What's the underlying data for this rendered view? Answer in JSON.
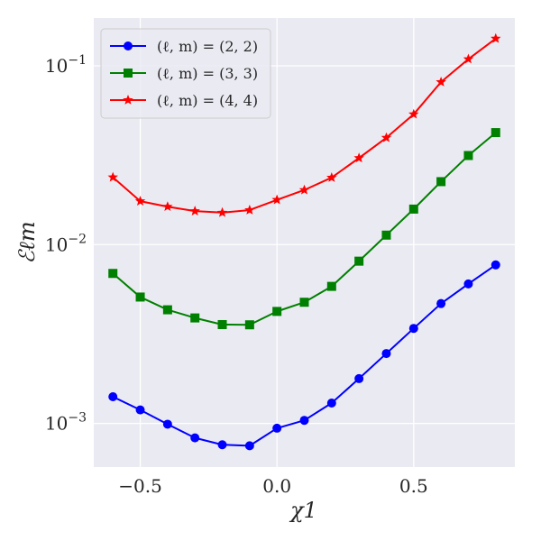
{
  "chart_data": {
    "type": "line",
    "title": "",
    "xlabel": "χ1",
    "ylabel": "ℰℓm",
    "xscale": "linear",
    "yscale": "log",
    "xlim": [
      -0.67,
      0.87
    ],
    "ylim": [
      0.00057,
      0.185
    ],
    "grid": true,
    "legend_position": "top-left",
    "x_ticks": [
      {
        "value": -0.5,
        "label": "−0.5"
      },
      {
        "value": 0.0,
        "label": "0.0"
      },
      {
        "value": 0.5,
        "label": "0.5"
      }
    ],
    "y_ticks": [
      {
        "value": 0.001,
        "base": "10",
        "exp": "−3"
      },
      {
        "value": 0.01,
        "base": "10",
        "exp": "−2"
      },
      {
        "value": 0.1,
        "base": "10",
        "exp": "−1"
      }
    ],
    "x": [
      -0.6,
      -0.5,
      -0.4,
      -0.3,
      -0.2,
      -0.1,
      0.0,
      0.1,
      0.2,
      0.3,
      0.4,
      0.5,
      0.6,
      0.7,
      0.8
    ],
    "series": [
      {
        "name": "(ℓ, m) = (2, 2)",
        "color": "#0000ff",
        "marker": "circle",
        "values": [
          0.00141,
          0.00119,
          0.00099,
          0.00083,
          0.00076,
          0.00075,
          0.00094,
          0.00104,
          0.0013,
          0.00178,
          0.00246,
          0.0034,
          0.00468,
          0.00603,
          0.0077
        ]
      },
      {
        "name": "(ℓ, m) = (3, 3)",
        "color": "#008000",
        "marker": "square",
        "values": [
          0.0069,
          0.00509,
          0.00432,
          0.00389,
          0.00357,
          0.00356,
          0.00423,
          0.00476,
          0.00584,
          0.00808,
          0.0113,
          0.0158,
          0.0225,
          0.0315,
          0.0423
        ]
      },
      {
        "name": "(ℓ, m) = (4, 4)",
        "color": "#ff0000",
        "marker": "star",
        "values": [
          0.0238,
          0.0175,
          0.0163,
          0.0154,
          0.0151,
          0.0156,
          0.0178,
          0.0202,
          0.0237,
          0.0305,
          0.0396,
          0.0536,
          0.0811,
          0.109,
          0.142
        ]
      }
    ]
  }
}
